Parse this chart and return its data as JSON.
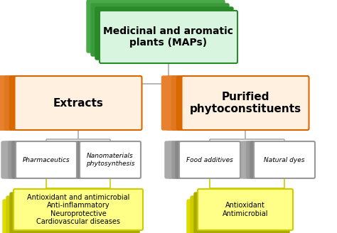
{
  "title": "Medicinal and aromatic\nplants (MAPs)",
  "title_box_color": "#d8f5e0",
  "title_border_color": "#2a8a2a",
  "title_shadow_colors": [
    "#2a8a2a",
    "#3a9a3a",
    "#4aaa4a"
  ],
  "extracts_label": "Extracts",
  "purified_label": "Purified\nphytoconstituents",
  "orange_box_color": "#fff0e0",
  "orange_border_color": "#d96800",
  "orange_shadow_colors": [
    "#d96800",
    "#e07820",
    "#e88030"
  ],
  "gray_labels": [
    "Pharmaceutics",
    "Nanomaterials\nphytosynthesis",
    "Food additives",
    "Natural dyes"
  ],
  "gray_box_color": "#ffffff",
  "gray_border_color": "#999999",
  "gray_shadow_colors": [
    "#888888",
    "#999999",
    "#aaaaaa"
  ],
  "yellow_labels": [
    "Antioxidant and antimicrobial\nAnti-inflammatory\nNeuroprotective\nCardiovascular diseases",
    "Antioxidant\nAntimicrobial"
  ],
  "yellow_box_color": "#ffff88",
  "yellow_border_color": "#cccc00",
  "yellow_shadow_colors": [
    "#aaaa00",
    "#cccc00",
    "#dddd00"
  ],
  "bg_color": "#ffffff",
  "connector_gray": "#aaaaaa",
  "connector_yellow": "#cccc00"
}
